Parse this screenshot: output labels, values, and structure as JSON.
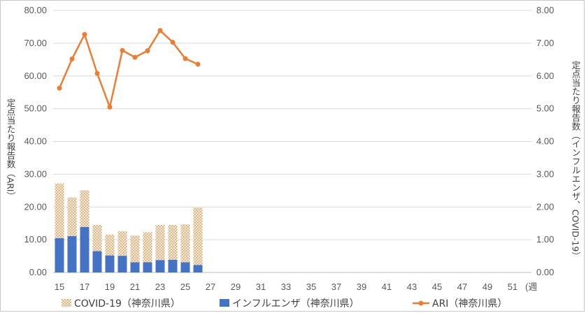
{
  "chart_data": {
    "type": "bar+line",
    "title": "",
    "x_ticks": [
      "15",
      "17",
      "19",
      "21",
      "23",
      "25",
      "27",
      "29",
      "31",
      "33",
      "35",
      "37",
      "39",
      "41",
      "43",
      "45",
      "47",
      "49",
      "51"
    ],
    "x_unit": "(週",
    "weeks": [
      15,
      16,
      17,
      18,
      19,
      20,
      21,
      22,
      23,
      24,
      25,
      26
    ],
    "x_range": [
      15,
      52
    ],
    "left_axis": {
      "label": "定点当たり報告数（ARI）",
      "ylim": [
        0,
        80
      ],
      "ticks": [
        "0.00",
        "10.00",
        "20.00",
        "30.00",
        "40.00",
        "50.00",
        "60.00",
        "70.00",
        "80.00"
      ]
    },
    "right_axis": {
      "label": "定点当たり報告数（インフルエンザ、COVID-19）",
      "ylim": [
        0,
        8
      ],
      "ticks": [
        "0.00",
        "1.00",
        "2.00",
        "3.00",
        "4.00",
        "5.00",
        "6.00",
        "7.00",
        "8.00"
      ]
    },
    "series": [
      {
        "name": "COVID-19（神奈川県）",
        "type": "stacked-bar",
        "axis": "right",
        "color": "#c9a36a",
        "values": [
          1.67,
          1.18,
          1.12,
          0.8,
          0.64,
          0.75,
          0.82,
          0.92,
          1.07,
          1.06,
          1.16,
          1.75
        ]
      },
      {
        "name": "インフルエンザ（神奈川県）",
        "type": "stacked-bar",
        "axis": "right",
        "color": "#4472c4",
        "values": [
          1.05,
          1.11,
          1.39,
          0.65,
          0.52,
          0.51,
          0.31,
          0.31,
          0.38,
          0.39,
          0.31,
          0.23
        ]
      },
      {
        "name": "ARI（神奈川県）",
        "type": "line",
        "axis": "left",
        "color": "#ed7d31",
        "values": [
          56.3,
          65.2,
          72.7,
          60.8,
          50.5,
          67.8,
          65.7,
          67.7,
          73.9,
          70.3,
          65.3,
          63.6
        ]
      }
    ],
    "grid": true,
    "legend_position": "bottom"
  }
}
